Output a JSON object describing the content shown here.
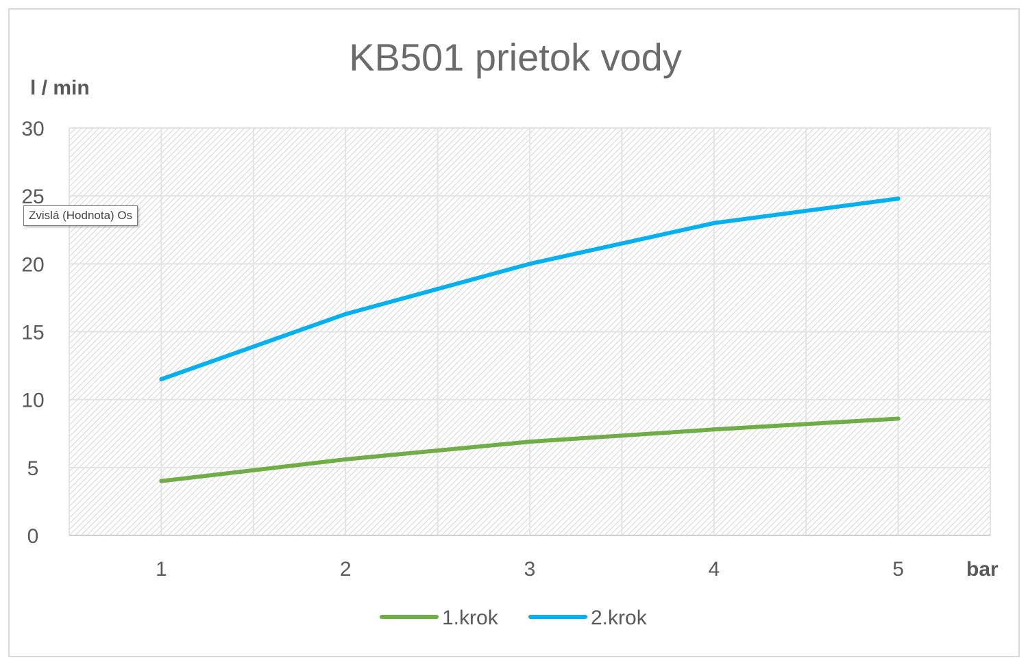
{
  "chart_data": {
    "type": "line",
    "title": "KB501 prietok vody",
    "xlabel": "bar",
    "ylabel": "l / min",
    "categories": [
      "1",
      "2",
      "3",
      "4",
      "5"
    ],
    "ylim": [
      0,
      30
    ],
    "yticks": [
      0,
      5,
      10,
      15,
      20,
      25,
      30
    ],
    "grid": true,
    "legend": "bottom",
    "series": [
      {
        "name": "1.krok",
        "color": "#70ad47",
        "values": [
          4.0,
          5.6,
          6.9,
          7.8,
          8.6
        ]
      },
      {
        "name": "2.krok",
        "color": "#00b0f0",
        "values": [
          11.5,
          16.3,
          20.0,
          23.0,
          24.8
        ]
      }
    ]
  },
  "tooltip": {
    "text": "Zvislá (Hodnota) Os"
  }
}
